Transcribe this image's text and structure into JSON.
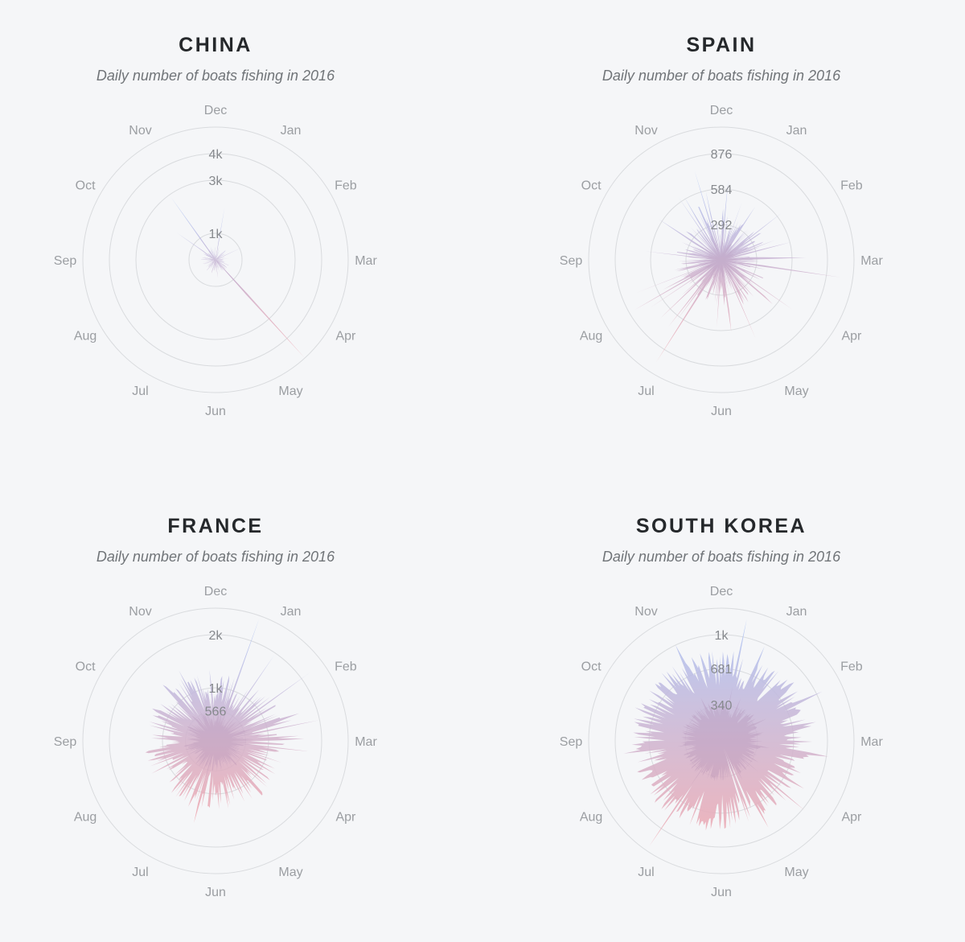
{
  "colors": {
    "top": "#a9c2f5",
    "bottom": "#f0a7ae",
    "ring": "#d9dbde"
  },
  "chart_data": [
    {
      "type": "radial-area",
      "title": "CHINA",
      "subtitle": "Daily number of boats fishing in 2016",
      "months": [
        "Dec",
        "Jan",
        "Feb",
        "Mar",
        "Apr",
        "May",
        "Jun",
        "Jul",
        "Aug",
        "Sep",
        "Oct",
        "Nov"
      ],
      "rings": [
        1000,
        3000,
        4000
      ],
      "tick_labels": [
        "1k",
        "3k",
        "4k"
      ],
      "rmax": 5000,
      "days": 366,
      "base": 200,
      "seed": 11,
      "noise": 350,
      "spike_rate": 0.02,
      "spike_max": 1200,
      "peaks": [
        {
          "day": 310,
          "value": 1800
        },
        {
          "day": 330,
          "value": 2900
        },
        {
          "day": 10,
          "value": 2000
        },
        {
          "day": 66,
          "value": 1100
        },
        {
          "day": 140,
          "value": 5000
        },
        {
          "day": 175,
          "value": 800
        },
        {
          "day": 175,
          "value": 700
        }
      ]
    },
    {
      "type": "radial-area",
      "title": "SPAIN",
      "subtitle": "Daily number of boats fishing in 2016",
      "months": [
        "Dec",
        "Jan",
        "Feb",
        "Mar",
        "Apr",
        "May",
        "Jun",
        "Jul",
        "Aug",
        "Sep",
        "Oct",
        "Nov"
      ],
      "rings": [
        292,
        584,
        876
      ],
      "tick_labels": [
        "292",
        "584",
        "876"
      ],
      "rmax": 1095,
      "days": 366,
      "base": 220,
      "seed": 22,
      "noise": 160,
      "spike_rate": 0.15,
      "spike_max": 420,
      "peaks": [
        {
          "day": 349,
          "value": 770
        },
        {
          "day": 335,
          "value": 600
        },
        {
          "day": 100,
          "value": 1000
        },
        {
          "day": 90,
          "value": 700
        },
        {
          "day": 216,
          "value": 1000
        },
        {
          "day": 244,
          "value": 830
        },
        {
          "day": 175,
          "value": 600
        },
        {
          "day": 230,
          "value": 700
        }
      ]
    },
    {
      "type": "radial-area",
      "title": "FRANCE",
      "subtitle": "Daily number of boats fishing in 2016",
      "months": [
        "Dec",
        "Jan",
        "Feb",
        "Mar",
        "Apr",
        "May",
        "Jun",
        "Jul",
        "Aug",
        "Sep",
        "Oct",
        "Nov"
      ],
      "rings": [
        566,
        1000,
        2000
      ],
      "tick_labels": [
        "566",
        "1k",
        "2k"
      ],
      "rmax": 2500,
      "days": 366,
      "base": 950,
      "seed": 33,
      "noise": 400,
      "spike_rate": 0.1,
      "spike_max": 700,
      "peaks": [
        {
          "day": 20,
          "value": 2450
        },
        {
          "day": 35,
          "value": 1950
        },
        {
          "day": 55,
          "value": 2200
        },
        {
          "day": 80,
          "value": 2000
        },
        {
          "day": 98,
          "value": 1750
        },
        {
          "day": 140,
          "value": 1300
        }
      ]
    },
    {
      "type": "radial-area",
      "title": "SOUTH KOREA",
      "subtitle": "Daily number of boats fishing in 2016",
      "months": [
        "Dec",
        "Jan",
        "Feb",
        "Mar",
        "Apr",
        "May",
        "Jun",
        "Jul",
        "Aug",
        "Sep",
        "Oct",
        "Nov"
      ],
      "rings": [
        340,
        681,
        1000
      ],
      "tick_labels": [
        "340",
        "681",
        "1k"
      ],
      "rmax": 1250,
      "days": 366,
      "base": 680,
      "seed": 44,
      "noise": 180,
      "spike_rate": 0.08,
      "spike_max": 260,
      "peaks": [
        {
          "day": 12,
          "value": 1170
        },
        {
          "day": 25,
          "value": 980
        },
        {
          "day": 52,
          "value": 880
        },
        {
          "day": 100,
          "value": 1020
        },
        {
          "day": 218,
          "value": 1200
        },
        {
          "day": 340,
          "value": 1000
        },
        {
          "day": 160,
          "value": 180
        },
        {
          "day": 165,
          "value": 150
        }
      ]
    }
  ]
}
